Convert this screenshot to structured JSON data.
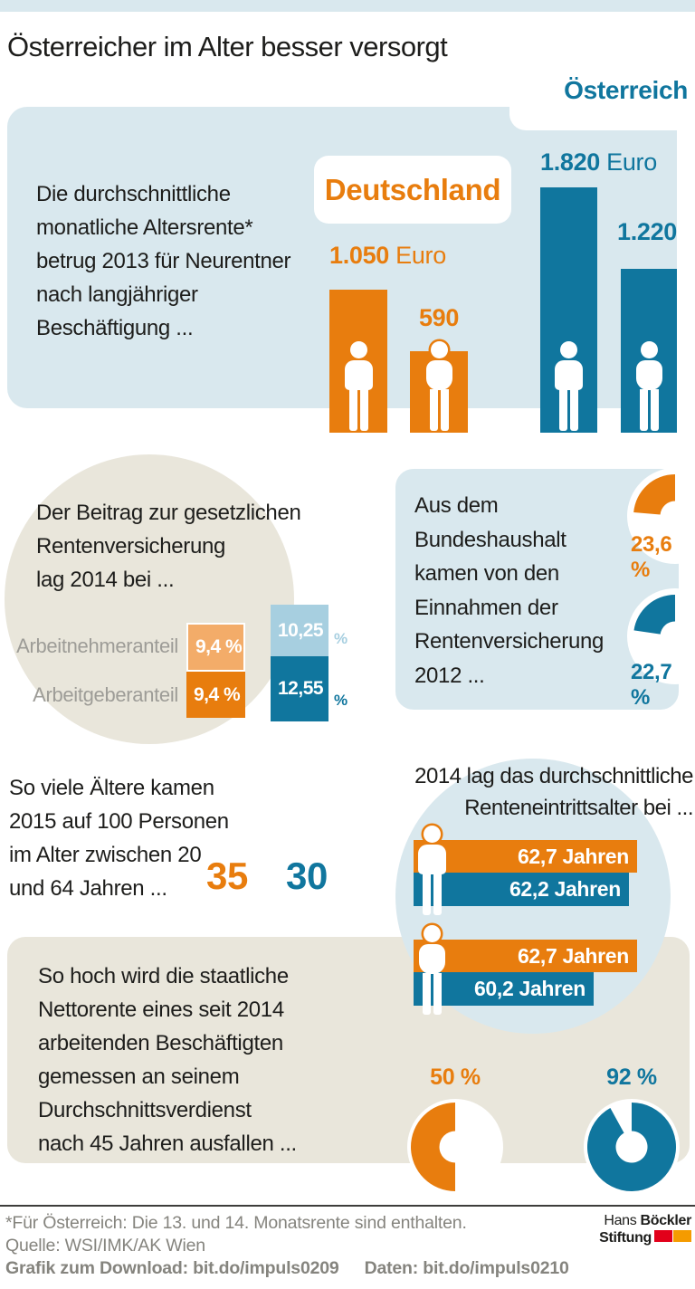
{
  "header": {
    "title": "Österreicher im Alter besser versorgt",
    "austria_label": "Österreich",
    "germany_label": "Deutschland"
  },
  "colors": {
    "germany": "#e87d0e",
    "germany_light": "#f3ac69",
    "austria": "#10769e",
    "austria_light": "#a7cfe0",
    "panel_blue": "#d9e8ee",
    "panel_beige": "#e9e6db",
    "logo_red": "#e2001a",
    "logo_orange": "#f59b00"
  },
  "sections": {
    "pension2013": {
      "text": "Die durchschnittliche\nmonatliche Altersrente*\nbetrug 2013 für Neurentner\nnach langjähriger\nBeschäftigung ...",
      "de_men": {
        "value": "1.050",
        "unit": "Euro"
      },
      "de_women": {
        "value": "590"
      },
      "at_men": {
        "value": "1.820",
        "unit": "Euro"
      },
      "at_women": {
        "value": "1.220"
      }
    },
    "contribution": {
      "text": "Der Beitrag zur gesetzlichen\nRentenversicherung\nlag 2014 bei ...",
      "employee_label": "Arbeitnehmeranteil",
      "employer_label": "Arbeitgeberanteil",
      "de_employee": "9,4 %",
      "de_employer": "9,4 %",
      "at_employee": "10,25",
      "at_employer": "12,55",
      "percent_sign": "%"
    },
    "budget": {
      "text": "Aus dem\nBundeshaushalt\nkamen von den\nEinnahmen der\nRentenversicherung\n2012 ...",
      "de": "23,6 %",
      "at": "22,7 %"
    },
    "ratio": {
      "text": "So viele Ältere kamen\n2015 auf 100 Personen\nim Alter zwischen 20\nund 64 Jahren ...",
      "de": "35",
      "at": "30"
    },
    "retirement": {
      "title": "2014 lag das durchschnittliche\nRenteneintrittsalter bei ...",
      "men_de": "62,7 Jahren",
      "men_at": "62,2 Jahren",
      "women_de": "62,7 Jahren",
      "women_at": "60,2 Jahren"
    },
    "net_pension": {
      "text": "So hoch wird die staatliche\nNettorente eines seit 2014\narbeitenden Beschäftigten\ngemessen an seinem\nDurchschnittsverdienst\nnach 45 Jahren ausfallen ...",
      "de": "50 %",
      "at": "92 %"
    }
  },
  "footer": {
    "footnote": "*Für Österreich: Die 13. und 14. Monatsrente sind enthalten.",
    "source": "Quelle: WSI/IMK/AK Wien",
    "download": "Grafik zum Download: bit.do/impuls0209",
    "data_link": "Daten: bit.do/impuls0210",
    "logo": {
      "line1_regular": "Hans ",
      "line1_bold": "Böckler",
      "line2": "Stiftung"
    }
  },
  "chart_data": [
    {
      "type": "bar",
      "title": "Durchschnittliche monatliche Altersrente 2013 für Neurentner nach langjähriger Beschäftigung",
      "categories": [
        "Männer",
        "Frauen"
      ],
      "series": [
        {
          "name": "Deutschland",
          "values": [
            1050,
            590
          ]
        },
        {
          "name": "Österreich",
          "values": [
            1820,
            1220
          ]
        }
      ],
      "unit": "Euro"
    },
    {
      "type": "bar",
      "subtype": "stacked",
      "title": "Beitrag zur gesetzlichen Rentenversicherung 2014",
      "categories": [
        "Deutschland",
        "Österreich"
      ],
      "series": [
        {
          "name": "Arbeitnehmeranteil",
          "values": [
            9.4,
            10.25
          ]
        },
        {
          "name": "Arbeitgeberanteil",
          "values": [
            9.4,
            12.55
          ]
        }
      ],
      "unit": "%"
    },
    {
      "type": "pie",
      "title": "Anteil des Bundeshaushalts an den Einnahmen der Rentenversicherung 2012",
      "series": [
        {
          "name": "Deutschland",
          "value": 23.6
        },
        {
          "name": "Österreich",
          "value": 22.7
        }
      ],
      "unit": "%"
    },
    {
      "type": "bar",
      "title": "Ältere 2015 auf 100 Personen im Alter zwischen 20 und 64 Jahren",
      "categories": [
        "Deutschland",
        "Österreich"
      ],
      "values": [
        35,
        30
      ]
    },
    {
      "type": "bar",
      "title": "Durchschnittliches Renteneintrittsalter 2014",
      "categories": [
        "Männer",
        "Frauen"
      ],
      "series": [
        {
          "name": "Deutschland",
          "values": [
            62.7,
            62.7
          ]
        },
        {
          "name": "Österreich",
          "values": [
            62.2,
            60.2
          ]
        }
      ],
      "unit": "Jahre"
    },
    {
      "type": "pie",
      "title": "Staatliche Nettorente eines seit 2014 arbeitenden Beschäftigten gemessen am Durchschnittsverdienst nach 45 Jahren",
      "series": [
        {
          "name": "Deutschland",
          "value": 50
        },
        {
          "name": "Österreich",
          "value": 92
        }
      ],
      "unit": "%"
    }
  ]
}
